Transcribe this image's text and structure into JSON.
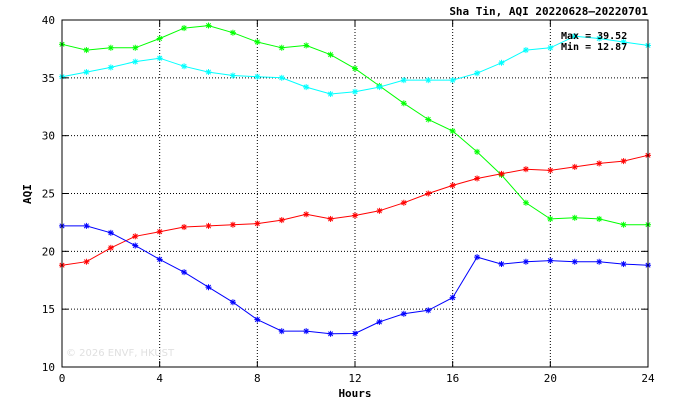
{
  "chart_data": {
    "type": "line",
    "title": "Sha Tin, AQI 20220628–20220701",
    "xlabel": "Hours",
    "ylabel": "AQI",
    "xlim": [
      0,
      24
    ],
    "ylim": [
      10,
      40
    ],
    "xticks": [
      0,
      4,
      8,
      12,
      16,
      20,
      24
    ],
    "yticks": [
      10,
      15,
      20,
      25,
      30,
      35,
      40
    ],
    "grid": true,
    "max_label": "Max = 39.52",
    "min_label": "Min = 12.87",
    "watermark": "© 2026  ENVF, HKUST",
    "x": [
      0,
      1,
      2,
      3,
      4,
      5,
      6,
      7,
      8,
      9,
      10,
      11,
      12,
      13,
      14,
      15,
      16,
      17,
      18,
      19,
      20,
      21,
      22,
      23,
      24
    ],
    "series": [
      {
        "color": "#00ff00",
        "values": [
          37.9,
          37.4,
          37.6,
          37.6,
          38.4,
          39.3,
          39.52,
          38.9,
          38.1,
          37.6,
          37.8,
          37.0,
          35.8,
          34.3,
          32.8,
          31.4,
          30.4,
          28.6,
          26.6,
          24.2,
          22.8,
          22.9,
          22.8,
          22.3,
          22.3
        ]
      },
      {
        "color": "#00ffff",
        "values": [
          35.1,
          35.5,
          35.9,
          36.4,
          36.7,
          36.0,
          35.5,
          35.2,
          35.1,
          35.0,
          34.2,
          33.6,
          33.8,
          34.2,
          34.8,
          34.8,
          34.8,
          35.4,
          36.3,
          37.4,
          37.6,
          38.6,
          38.4,
          38.1,
          37.8
        ]
      },
      {
        "color": "#ff0000",
        "values": [
          18.8,
          19.1,
          20.3,
          21.3,
          21.7,
          22.1,
          22.2,
          22.3,
          22.4,
          22.7,
          23.2,
          22.8,
          23.1,
          23.5,
          24.2,
          25.0,
          25.7,
          26.3,
          26.7,
          27.1,
          27.0,
          27.3,
          27.6,
          27.8,
          28.3
        ]
      },
      {
        "color": "#0000ff",
        "values": [
          22.2,
          22.2,
          21.6,
          20.5,
          19.3,
          18.2,
          16.9,
          15.6,
          14.1,
          13.1,
          13.1,
          12.87,
          12.9,
          13.9,
          14.6,
          14.9,
          16.0,
          19.5,
          18.9,
          19.1,
          19.2,
          19.1,
          19.1,
          18.9,
          18.8
        ]
      }
    ]
  }
}
